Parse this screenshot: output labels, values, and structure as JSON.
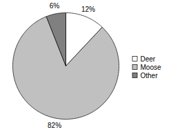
{
  "chart_data": {
    "type": "pie",
    "categories": [
      "Deer",
      "Moose",
      "Other"
    ],
    "values": [
      12,
      82,
      6
    ],
    "value_labels": [
      "12%",
      "82%",
      "6%"
    ],
    "colors": [
      "#ffffff",
      "#c0c0c0",
      "#808080"
    ],
    "data_labels": true,
    "legend": "right"
  }
}
